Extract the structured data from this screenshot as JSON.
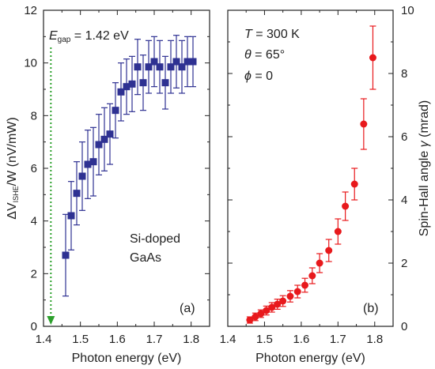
{
  "chart_data": [
    {
      "type": "scatter",
      "panel_label": "(a)",
      "xlabel": "Photon energy (eV)",
      "ylabel": {
        "main": "ΔV",
        "sub": "ISHE",
        "rest": "/W (nV/mW)"
      },
      "xlim": [
        1.4,
        1.85
      ],
      "ylim": [
        0,
        12
      ],
      "xticks": [
        "1.4",
        "1.5",
        "1.6",
        "1.7",
        "1.8"
      ],
      "yticks": [
        "0",
        "2",
        "4",
        "6",
        "8",
        "10",
        "12"
      ],
      "annotations": {
        "egap": {
          "var": "E",
          "sub": "gap",
          "text": " = 1.42 eV",
          "value_eV": 1.42
        },
        "sample_line1": "Si-doped",
        "sample_line2": "GaAs"
      },
      "marker": "square",
      "color": "#2e3192",
      "arrow_color": "#2ca02c",
      "series": [
        {
          "x": [
            1.46,
            1.475,
            1.49,
            1.505,
            1.52,
            1.535,
            1.55,
            1.565,
            1.58,
            1.595,
            1.61,
            1.625,
            1.64,
            1.655,
            1.67,
            1.685,
            1.7,
            1.715,
            1.73,
            1.745,
            1.76,
            1.775,
            1.79,
            1.805
          ],
          "y": [
            2.7,
            4.2,
            5.05,
            5.7,
            6.15,
            6.25,
            6.9,
            7.1,
            7.3,
            8.2,
            8.9,
            9.1,
            9.2,
            9.85,
            9.25,
            9.85,
            10.05,
            9.85,
            9.25,
            9.85,
            10.05,
            9.85,
            10.05,
            10.05
          ],
          "yerr": [
            1.55,
            1.3,
            1.2,
            1.3,
            1.3,
            1.3,
            1.15,
            1.2,
            1.15,
            1.05,
            1.1,
            1.05,
            1.05,
            1.05,
            1.05,
            1.0,
            0.95,
            1.0,
            1.0,
            1.0,
            1.0,
            1.0,
            0.95,
            0.95
          ]
        }
      ]
    },
    {
      "type": "scatter",
      "panel_label": "(b)",
      "xlabel": "Photon energy (eV)",
      "ylabel": {
        "main": "Spin-Hall angle ",
        "italic": "γ",
        "rest": " (mrad)"
      },
      "xlim": [
        1.4,
        1.85
      ],
      "ylim": [
        0,
        10
      ],
      "xticks": [
        "1.4",
        "1.5",
        "1.6",
        "1.7",
        "1.8"
      ],
      "yticks": [
        "0",
        "2",
        "4",
        "6",
        "8",
        "10"
      ],
      "annotations": {
        "temperature": {
          "var": "T",
          "text": " = 300 K"
        },
        "theta": {
          "var": "θ",
          "text": " = 65°"
        },
        "phi": {
          "var": "ϕ",
          "text": " = 0"
        }
      },
      "marker": "circle",
      "color": "#e8191c",
      "series": [
        {
          "x": [
            1.46,
            1.475,
            1.49,
            1.505,
            1.52,
            1.535,
            1.55,
            1.57,
            1.59,
            1.61,
            1.63,
            1.65,
            1.675,
            1.7,
            1.72,
            1.745,
            1.77,
            1.795
          ],
          "y": [
            0.2,
            0.3,
            0.4,
            0.5,
            0.6,
            0.7,
            0.8,
            0.95,
            1.1,
            1.3,
            1.6,
            2.0,
            2.4,
            3.0,
            3.8,
            4.5,
            6.4,
            8.5
          ],
          "yerr": [
            0.1,
            0.12,
            0.12,
            0.14,
            0.15,
            0.16,
            0.17,
            0.18,
            0.2,
            0.22,
            0.25,
            0.3,
            0.35,
            0.4,
            0.45,
            0.5,
            0.8,
            1.0
          ]
        }
      ]
    }
  ]
}
